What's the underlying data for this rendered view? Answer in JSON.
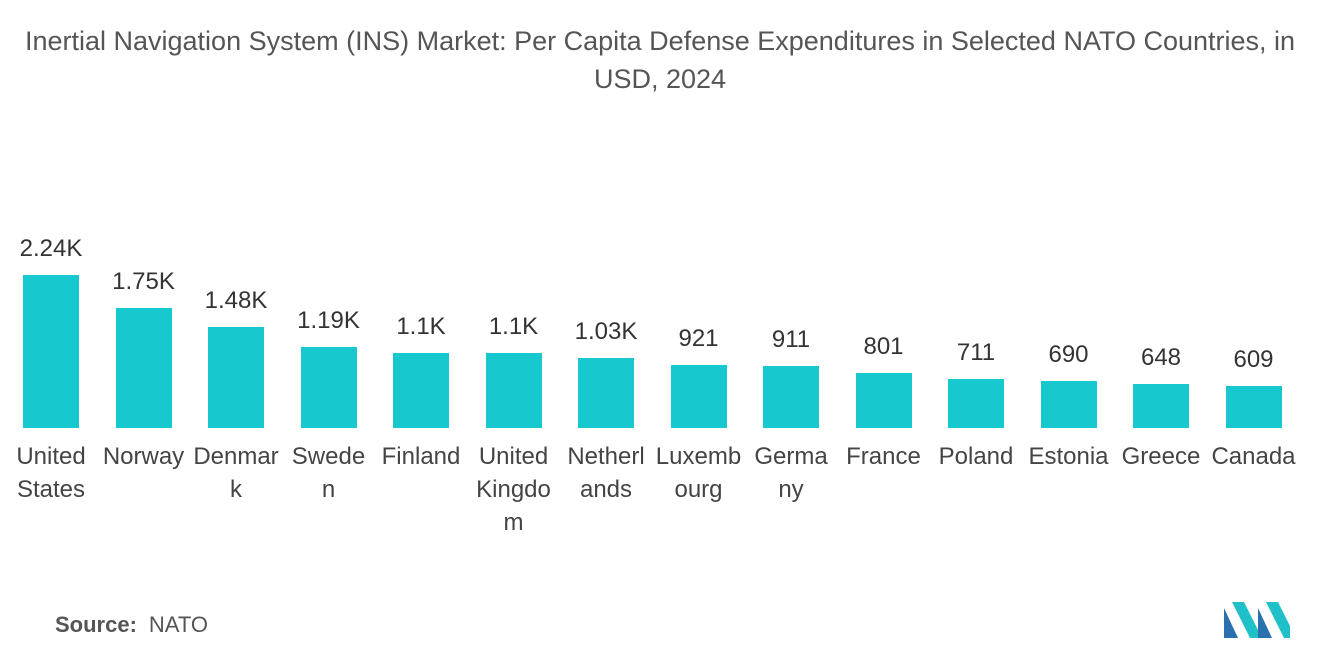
{
  "chart_data": {
    "type": "bar",
    "title": "Inertial Navigation System (INS) Market: Per Capita Defense Expenditures in Selected NATO Countries, in USD, 2024",
    "categories": [
      "United States",
      "Norway",
      "Denmark",
      "Sweden",
      "Finland",
      "United Kingdom",
      "Netherlands",
      "Luxembourg",
      "Germany",
      "France",
      "Poland",
      "Estonia",
      "Greece",
      "Canada"
    ],
    "values": [
      2240,
      1750,
      1480,
      1190,
      1100,
      1100,
      1030,
      921,
      911,
      801,
      711,
      690,
      648,
      609
    ],
    "value_labels": [
      "2.24K",
      "1.75K",
      "1.48K",
      "1.19K",
      "1.1K",
      "1.1K",
      "1.03K",
      "921",
      "911",
      "801",
      "711",
      "690",
      "648",
      "609"
    ],
    "color": "#17c9cf",
    "source_label": "Source:",
    "source": "NATO"
  }
}
